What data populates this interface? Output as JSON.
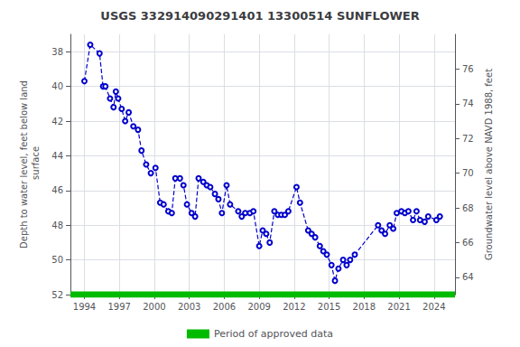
{
  "chart_data": {
    "type": "line",
    "title": "USGS 332914090291401 13300514 SUNFLOWER",
    "ylabel": "Depth to water level, feet below land\n surface",
    "y2label": "Groundwater level above NAVD 1988, feet",
    "xlim": [
      1992.8,
      2025.8
    ],
    "xticks": [
      1994,
      1997,
      2000,
      2003,
      2006,
      2009,
      2012,
      2015,
      2018,
      2021,
      2024
    ],
    "ylim": [
      52,
      37
    ],
    "yticks": [
      38,
      40,
      42,
      44,
      46,
      48,
      50,
      52
    ],
    "y2lim": [
      63,
      78
    ],
    "y2ticks": [
      64,
      66,
      68,
      70,
      72,
      74,
      76
    ],
    "grid": true,
    "legend": "bottom",
    "x": [
      1994.0,
      1994.5,
      1995.3,
      1995.6,
      1995.8,
      1996.2,
      1996.5,
      1996.7,
      1996.9,
      1997.2,
      1997.5,
      1997.8,
      1998.2,
      1998.6,
      1998.9,
      1999.3,
      1999.7,
      2000.1,
      2000.5,
      2000.8,
      2001.2,
      2001.5,
      2001.8,
      2002.2,
      2002.5,
      2002.8,
      2003.2,
      2003.5,
      2003.8,
      2004.2,
      2004.5,
      2004.8,
      2005.2,
      2005.5,
      2005.8,
      2006.2,
      2006.5,
      2007.2,
      2007.5,
      2007.8,
      2008.2,
      2008.5,
      2009.0,
      2009.3,
      2009.6,
      2009.9,
      2010.3,
      2010.6,
      2010.9,
      2011.2,
      2011.5,
      2012.2,
      2012.5,
      2013.2,
      2013.5,
      2013.8,
      2014.2,
      2014.5,
      2014.8,
      2015.2,
      2015.5,
      2015.8,
      2016.2,
      2016.5,
      2016.8,
      2017.2,
      2019.2,
      2019.5,
      2019.8,
      2020.2,
      2020.5,
      2020.8,
      2021.2,
      2021.5,
      2021.8,
      2022.2,
      2022.5,
      2022.8,
      2023.2,
      2023.5,
      2024.2,
      2024.5
    ],
    "series": [
      {
        "type": "line",
        "color": "#0000cc",
        "line_style": "dashed",
        "marker": "circle",
        "values": [
          39.7,
          37.6,
          38.1,
          40.0,
          40.0,
          40.7,
          41.2,
          40.3,
          40.7,
          41.3,
          42.0,
          41.5,
          42.3,
          42.5,
          43.7,
          44.5,
          45.0,
          44.7,
          46.7,
          46.8,
          47.2,
          47.3,
          45.3,
          45.3,
          45.7,
          46.8,
          47.3,
          47.5,
          45.3,
          45.5,
          45.7,
          45.8,
          46.2,
          46.5,
          47.3,
          45.7,
          46.8,
          47.2,
          47.5,
          47.3,
          47.3,
          47.2,
          49.2,
          48.3,
          48.5,
          49.0,
          47.2,
          47.4,
          47.4,
          47.4,
          47.2,
          45.8,
          46.7,
          48.3,
          48.5,
          48.7,
          49.2,
          49.5,
          49.7,
          50.3,
          51.2,
          50.5,
          50.0,
          50.3,
          50.0,
          49.7,
          48.0,
          48.3,
          48.5,
          48.0,
          48.2,
          47.3,
          47.2,
          47.3,
          47.2,
          47.7,
          47.2,
          47.7,
          47.8,
          47.5,
          47.7,
          47.5
        ]
      },
      {
        "name": "Period of approved data",
        "type": "line",
        "color": "#00bb00",
        "line_style": "solid",
        "x": [
          1992.8,
          2025.8
        ],
        "values": [
          52,
          52
        ]
      }
    ]
  }
}
